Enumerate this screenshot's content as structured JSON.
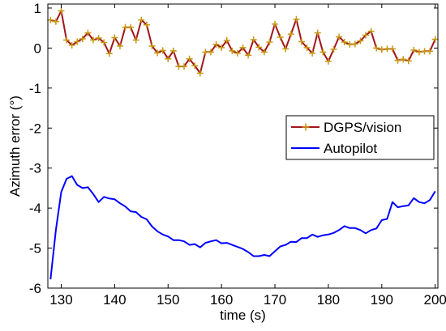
{
  "chart_data": {
    "type": "line",
    "xlabel": "time (s)",
    "ylabel": "Azimuth error (°)",
    "xlim": [
      127.5,
      200.5
    ],
    "ylim": [
      -6,
      1.1
    ],
    "x_ticks": [
      "130",
      "140",
      "150",
      "160",
      "170",
      "180",
      "190",
      "200"
    ],
    "y_ticks": [
      "1",
      "0",
      "-1",
      "-2",
      "-3",
      "-4",
      "-5",
      "-6"
    ],
    "legend_position": "right",
    "grid": false,
    "series": [
      {
        "name": "DGPS/vision",
        "color": "#a0151b",
        "marker_color": "#c8960f",
        "marker": "plus",
        "x": [
          128,
          129,
          130,
          131,
          132,
          133,
          134,
          135,
          136,
          137,
          138,
          139,
          140,
          141,
          142,
          143,
          144,
          145,
          146,
          147,
          148,
          149,
          150,
          151,
          152,
          153,
          154,
          155,
          156,
          157,
          158,
          159,
          160,
          161,
          162,
          163,
          164,
          165,
          166,
          167,
          168,
          169,
          170,
          171,
          172,
          173,
          174,
          175,
          176,
          177,
          178,
          179,
          180,
          181,
          182,
          183,
          184,
          185,
          186,
          187,
          188,
          189,
          190,
          191,
          192,
          193,
          194,
          195,
          196,
          197,
          198,
          199,
          200
        ],
        "values": [
          0.7,
          0.66,
          0.93,
          0.2,
          0.07,
          0.16,
          0.23,
          0.38,
          0.2,
          0.25,
          0.14,
          -0.14,
          0.26,
          0.05,
          0.52,
          0.52,
          0.2,
          0.7,
          0.58,
          0.05,
          -0.12,
          -0.06,
          -0.27,
          -0.07,
          -0.46,
          -0.46,
          -0.27,
          -0.44,
          -0.63,
          -0.1,
          -0.1,
          0.09,
          0.01,
          0.19,
          -0.07,
          -0.13,
          0.01,
          -0.18,
          0.21,
          0.02,
          -0.1,
          0.15,
          0.6,
          0.27,
          -0.02,
          0.35,
          0.72,
          0.16,
          0.01,
          -0.13,
          0.38,
          -0.1,
          -0.33,
          -0.03,
          0.28,
          0.15,
          0.09,
          0.1,
          0.18,
          0.32,
          0.42,
          0.0,
          -0.04,
          -0.02,
          -0.02,
          -0.31,
          -0.28,
          -0.32,
          -0.05,
          -0.1,
          -0.08,
          -0.08,
          0.22
        ]
      },
      {
        "name": "Autopilot",
        "color": "#0000ff",
        "x": [
          128,
          129,
          130,
          131,
          132,
          133,
          134,
          135,
          136,
          137,
          138,
          139,
          140,
          141,
          142,
          143,
          144,
          145,
          146,
          147,
          148,
          149,
          150,
          151,
          152,
          153,
          154,
          155,
          156,
          157,
          158,
          159,
          160,
          161,
          162,
          163,
          164,
          165,
          166,
          167,
          168,
          169,
          170,
          171,
          172,
          173,
          174,
          175,
          176,
          177,
          178,
          179,
          180,
          181,
          182,
          183,
          184,
          185,
          186,
          187,
          188,
          189,
          190,
          191,
          192,
          193,
          194,
          195,
          196,
          197,
          198,
          199,
          200
        ],
        "values": [
          -5.78,
          -4.55,
          -3.6,
          -3.27,
          -3.2,
          -3.42,
          -3.5,
          -3.48,
          -3.65,
          -3.85,
          -3.72,
          -3.76,
          -3.78,
          -3.88,
          -3.96,
          -4.08,
          -4.1,
          -4.22,
          -4.28,
          -4.46,
          -4.58,
          -4.66,
          -4.71,
          -4.8,
          -4.8,
          -4.83,
          -4.92,
          -4.9,
          -4.98,
          -4.87,
          -4.83,
          -4.8,
          -4.88,
          -4.87,
          -4.92,
          -4.97,
          -5.02,
          -5.1,
          -5.2,
          -5.2,
          -5.17,
          -5.2,
          -5.08,
          -4.96,
          -4.92,
          -4.84,
          -4.85,
          -4.75,
          -4.75,
          -4.66,
          -4.72,
          -4.68,
          -4.66,
          -4.62,
          -4.55,
          -4.45,
          -4.5,
          -4.5,
          -4.55,
          -4.63,
          -4.55,
          -4.51,
          -4.3,
          -4.27,
          -3.85,
          -3.98,
          -3.95,
          -3.93,
          -3.75,
          -3.85,
          -3.88,
          -3.8,
          -3.58
        ]
      }
    ]
  }
}
